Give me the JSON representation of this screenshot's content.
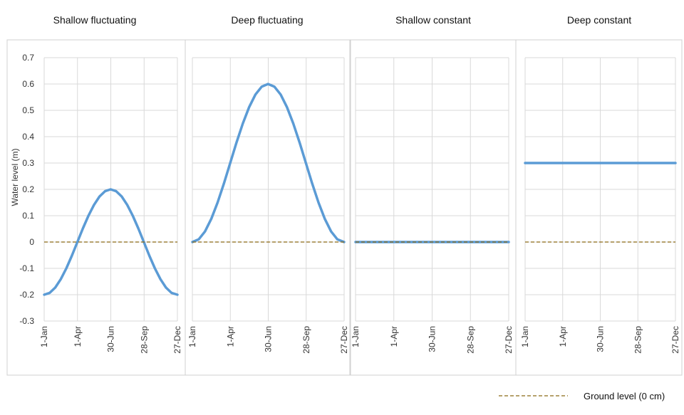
{
  "legend": {
    "label": "Ground  level (0 cm)",
    "color": "#8B6914"
  },
  "chart_data": [
    {
      "type": "line",
      "title": "Shallow fluctuating",
      "xlabel": "",
      "ylabel": "Water level (m)",
      "x_ticks": [
        "1-Jan",
        "1-Apr",
        "30-Jun",
        "28-Sep",
        "27-Dec"
      ],
      "x_range": [
        0,
        361
      ],
      "y_ticks": [
        0.7,
        0.6,
        0.5,
        0.4,
        0.3,
        0.2,
        0.1,
        0,
        -0.1,
        -0.2,
        -0.3
      ],
      "y_tick_labels": [
        "0.7",
        "0.6",
        "0.5",
        "0.4",
        "0.3",
        "0.2",
        "0.1",
        "0",
        "-0.1",
        "-0.2",
        "-0.3"
      ],
      "ylim": [
        -0.3,
        0.7
      ],
      "grid": true,
      "series": [
        {
          "color": "#5B9BD5",
          "x": [
            0,
            15,
            30,
            45,
            60,
            75,
            90,
            105,
            120,
            135,
            150,
            165,
            180,
            195,
            210,
            225,
            240,
            255,
            270,
            285,
            300,
            315,
            330,
            345,
            361
          ],
          "y": [
            -0.2,
            -0.193,
            -0.173,
            -0.141,
            -0.1,
            -0.052,
            0,
            0.052,
            0.1,
            0.141,
            0.173,
            0.193,
            0.2,
            0.193,
            0.173,
            0.141,
            0.1,
            0.052,
            0,
            -0.052,
            -0.1,
            -0.141,
            -0.173,
            -0.193,
            -0.2
          ]
        }
      ]
    },
    {
      "type": "line",
      "title": "Deep fluctuating",
      "xlabel": "",
      "ylabel": "",
      "x_ticks": [
        "1-Jan",
        "1-Apr",
        "30-Jun",
        "28-Sep",
        "27-Dec"
      ],
      "x_range": [
        0,
        361
      ],
      "y_ticks": [
        0.7,
        0.6,
        0.5,
        0.4,
        0.3,
        0.2,
        0.1,
        0,
        -0.1,
        -0.2,
        -0.3
      ],
      "ylim": [
        -0.3,
        0.7
      ],
      "grid": true,
      "series": [
        {
          "color": "#5B9BD5",
          "x": [
            0,
            15,
            30,
            45,
            60,
            75,
            90,
            105,
            120,
            135,
            150,
            165,
            180,
            195,
            210,
            225,
            240,
            255,
            270,
            285,
            300,
            315,
            330,
            345,
            361
          ],
          "y": [
            0,
            0.01,
            0.04,
            0.088,
            0.15,
            0.222,
            0.3,
            0.378,
            0.45,
            0.512,
            0.56,
            0.59,
            0.6,
            0.59,
            0.56,
            0.512,
            0.45,
            0.378,
            0.3,
            0.222,
            0.15,
            0.088,
            0.04,
            0.01,
            0
          ]
        }
      ]
    },
    {
      "type": "line",
      "title": "Shallow constant",
      "xlabel": "",
      "ylabel": "",
      "x_ticks": [
        "1-Jan",
        "1-Apr",
        "30-Jun",
        "28-Sep",
        "27-Dec"
      ],
      "x_range": [
        0,
        361
      ],
      "y_ticks": [
        0.7,
        0.6,
        0.5,
        0.4,
        0.3,
        0.2,
        0.1,
        0,
        -0.1,
        -0.2,
        -0.3
      ],
      "ylim": [
        -0.3,
        0.7
      ],
      "grid": true,
      "series": [
        {
          "color": "#5B9BD5",
          "x": [
            0,
            361
          ],
          "y": [
            0,
            0
          ]
        }
      ]
    },
    {
      "type": "line",
      "title": "Deep constant",
      "xlabel": "",
      "ylabel": "",
      "x_ticks": [
        "1-Jan",
        "1-Apr",
        "30-Jun",
        "28-Sep",
        "27-Dec"
      ],
      "x_range": [
        0,
        361
      ],
      "y_ticks": [
        0.7,
        0.6,
        0.5,
        0.4,
        0.3,
        0.2,
        0.1,
        0,
        -0.1,
        -0.2,
        -0.3
      ],
      "ylim": [
        -0.3,
        0.7
      ],
      "grid": true,
      "series": [
        {
          "color": "#5B9BD5",
          "x": [
            0,
            361
          ],
          "y": [
            0.3,
            0.3
          ]
        }
      ]
    }
  ]
}
